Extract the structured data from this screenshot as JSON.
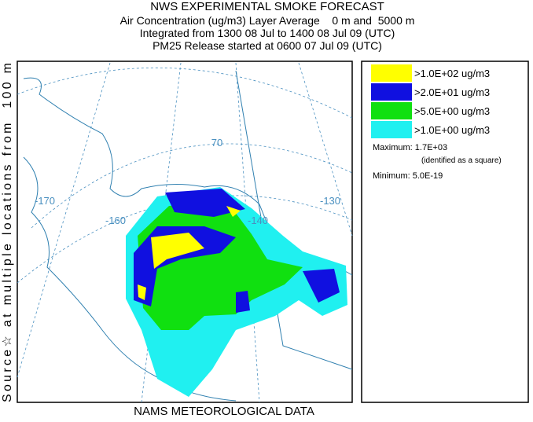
{
  "header": {
    "title": "NWS EXPERIMENTAL SMOKE FORECAST",
    "lines": [
      "Air Concentration (ug/m3) Layer Average    0 m and  5000 m",
      "Integrated from 1300 08 Jul to 1400 08 Jul 09 (UTC)",
      "PM25 Release started at 0600 07 Jul 09 (UTC)"
    ]
  },
  "side_label": "Source☆ at multiple locations from  100 m",
  "footer": "NAMS METEOROLOGICAL DATA",
  "legend": {
    "items": [
      {
        "label": ">1.0E+02 ug/m3",
        "color": "#ffff00"
      },
      {
        "label": ">2.0E+01 ug/m3",
        "color": "#1010e0"
      },
      {
        "label": ">5.0E+00 ug/m3",
        "color": "#10e010"
      },
      {
        "label": ">1.0E+00 ug/m3",
        "color": "#20f0f0"
      }
    ],
    "maximum": "Maximum: 1.7E+03",
    "maximum_note": "(identified as a square)",
    "minimum": "Minimum: 5.0E-19"
  },
  "map_labels": [
    "-170",
    "-160",
    "-140",
    "-130",
    "70"
  ]
}
